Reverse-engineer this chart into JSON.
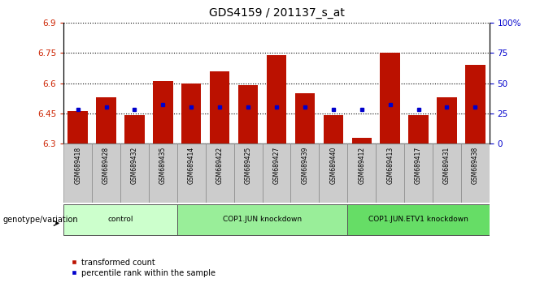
{
  "title": "GDS4159 / 201137_s_at",
  "samples": [
    "GSM689418",
    "GSM689428",
    "GSM689432",
    "GSM689435",
    "GSM689414",
    "GSM689422",
    "GSM689425",
    "GSM689427",
    "GSM689439",
    "GSM689440",
    "GSM689412",
    "GSM689413",
    "GSM689417",
    "GSM689431",
    "GSM689438"
  ],
  "bar_values": [
    6.46,
    6.53,
    6.44,
    6.61,
    6.6,
    6.66,
    6.59,
    6.74,
    6.55,
    6.44,
    6.33,
    6.75,
    6.44,
    6.53,
    6.69
  ],
  "blue_percentiles": [
    28,
    30,
    28,
    32,
    30,
    30,
    30,
    30,
    30,
    28,
    28,
    32,
    28,
    30,
    30
  ],
  "ylim_left": [
    6.3,
    6.9
  ],
  "ylim_right": [
    0,
    100
  ],
  "yticks_left": [
    6.3,
    6.45,
    6.6,
    6.75,
    6.9
  ],
  "ytick_labels_left": [
    "6.3",
    "6.45",
    "6.6",
    "6.75",
    "6.9"
  ],
  "yticks_right": [
    0,
    25,
    50,
    75,
    100
  ],
  "ytick_labels_right": [
    "0",
    "25",
    "50",
    "75",
    "100%"
  ],
  "groups": [
    {
      "label": "control",
      "start": 0,
      "end": 4,
      "color": "#ccffcc"
    },
    {
      "label": "COP1.JUN knockdown",
      "start": 4,
      "end": 10,
      "color": "#99ee99"
    },
    {
      "label": "COP1.JUN.ETV1 knockdown",
      "start": 10,
      "end": 15,
      "color": "#66dd66"
    }
  ],
  "bar_color": "#bb1100",
  "blue_color": "#0000cc",
  "bar_bottom": 6.3,
  "left_tick_color": "#cc2200",
  "right_tick_color": "#0000cc",
  "xlabel_left": "genotype/variation",
  "legend_items": [
    "transformed count",
    "percentile rank within the sample"
  ]
}
